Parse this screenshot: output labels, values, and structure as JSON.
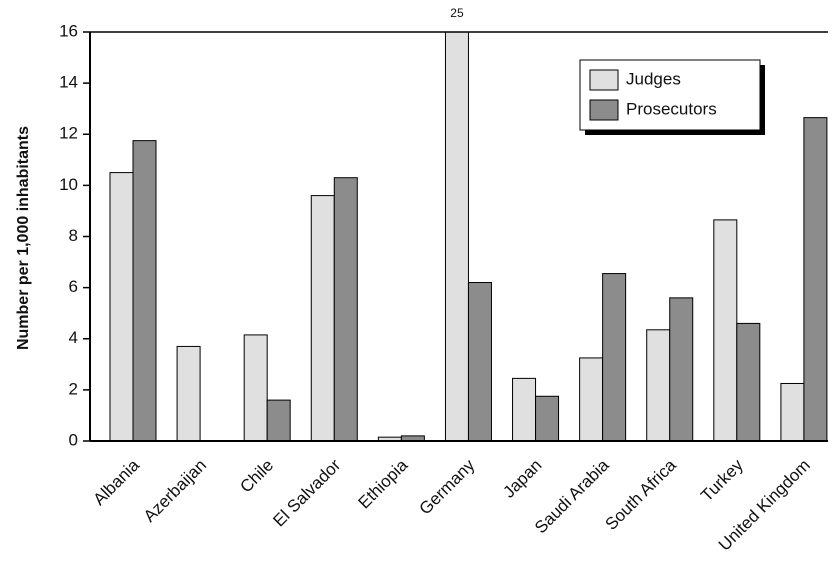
{
  "chart_data": {
    "type": "bar",
    "ylabel": "Number per 1,000 inhabitants",
    "categories": [
      "Albania",
      "Azerbaijan",
      "Chile",
      "El Salvador",
      "Ethiopia",
      "Germany",
      "Japan",
      "Saudi Arabia",
      "South Africa",
      "Turkey",
      "United Kingdom"
    ],
    "series": [
      {
        "name": "Judges",
        "color": "#e0e0e0",
        "values": [
          10.5,
          3.7,
          4.15,
          9.6,
          0.15,
          25,
          2.45,
          3.25,
          4.35,
          8.65,
          2.25
        ],
        "value_labels": [
          null,
          null,
          null,
          null,
          null,
          "25",
          null,
          null,
          null,
          null,
          null
        ]
      },
      {
        "name": "Prosecutors",
        "color": "#8c8c8c",
        "values": [
          11.75,
          null,
          1.6,
          10.3,
          0.2,
          6.2,
          1.75,
          6.55,
          5.6,
          4.6,
          12.65
        ]
      }
    ],
    "ylim": [
      0,
      16
    ],
    "yticks": [
      0,
      2,
      4,
      6,
      8,
      10,
      12,
      14,
      16
    ],
    "legend": "upper right"
  }
}
